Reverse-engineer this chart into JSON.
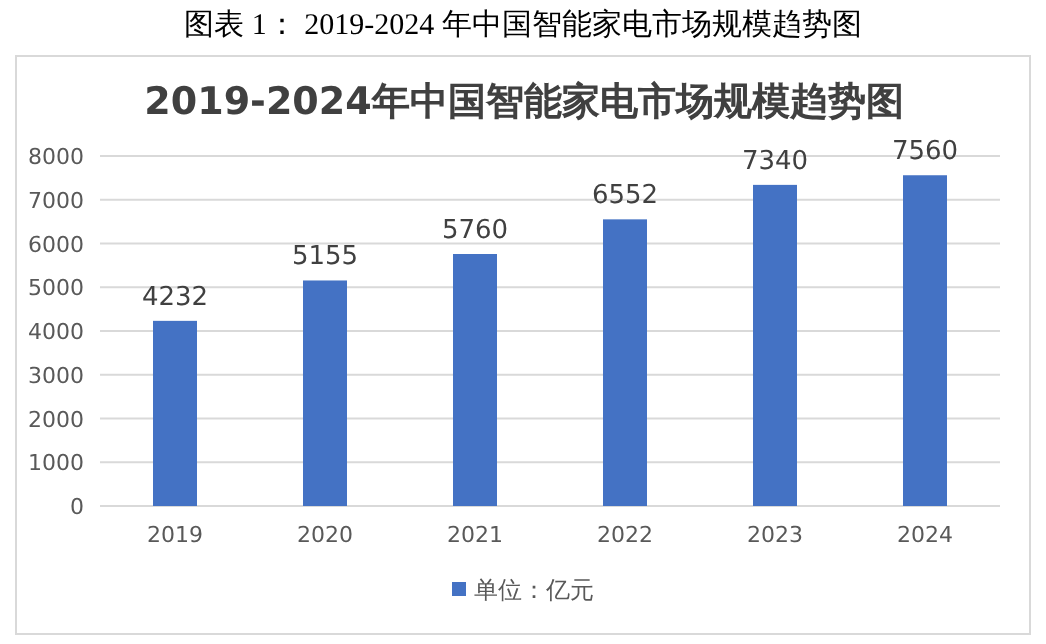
{
  "chart_data": {
    "type": "bar",
    "title": "2019-2024年中国智能家电市场规模趋势图",
    "annotations": [
      "图表 1：    2019-2024 年中国智能家电市场规模趋势图"
    ],
    "categories": [
      "2019",
      "2020",
      "2021",
      "2022",
      "2023",
      "2024"
    ],
    "series": [
      {
        "name": "单位：亿元",
        "color": "#4472c4",
        "values": [
          4232,
          5155,
          5760,
          6552,
          7340,
          7560
        ]
      }
    ],
    "ylim": [
      0,
      8000
    ],
    "yticks": [
      0,
      1000,
      2000,
      3000,
      4000,
      5000,
      6000,
      7000,
      8000
    ],
    "grid": "y",
    "legend": "bottom",
    "data_labels": true
  }
}
